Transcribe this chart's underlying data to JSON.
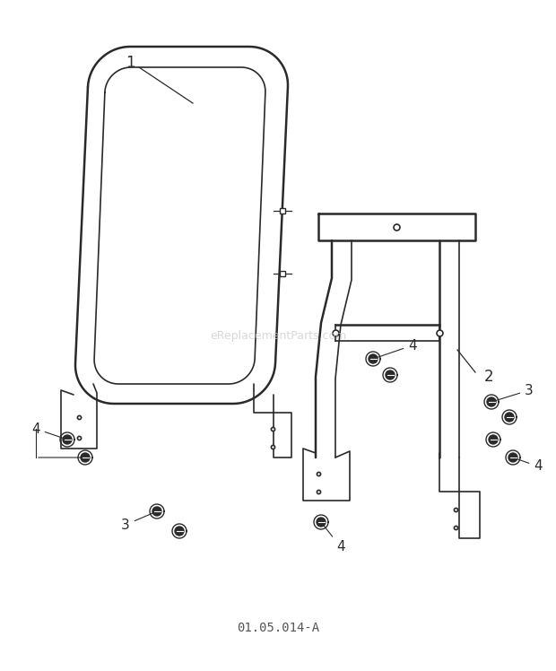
{
  "background_color": "#ffffff",
  "line_color": "#2a2a2a",
  "watermark_text": "eReplacementParts.com",
  "watermark_color": "#c8c8c8",
  "diagram_code": "01.05.014-A",
  "lw_outer": 1.8,
  "lw_inner": 1.2,
  "lw_thin": 0.9
}
